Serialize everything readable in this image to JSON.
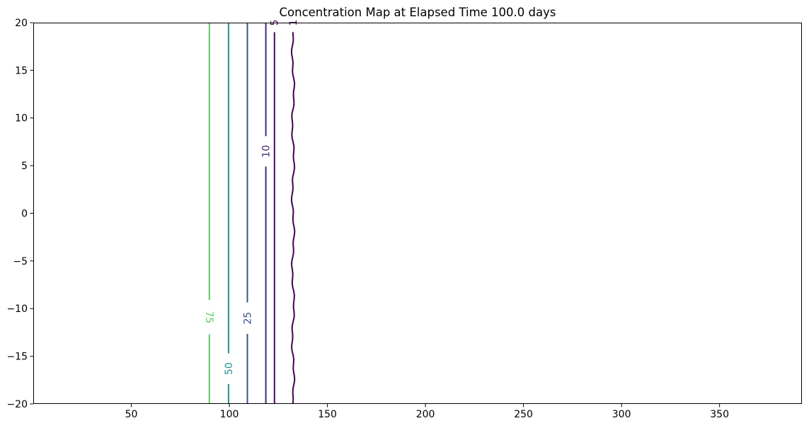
{
  "figure": {
    "background": "#ffffff"
  },
  "chart_data": {
    "type": "contour",
    "title": "Concentration Map at Elapsed Time 100.0 days",
    "xlabel": "",
    "ylabel": "",
    "xlim": [
      0,
      392
    ],
    "ylim": [
      -20,
      20
    ],
    "grid": false,
    "legend": "none",
    "colormap": "viridis",
    "x_ticks": [
      50,
      100,
      150,
      200,
      250,
      300,
      350
    ],
    "x_tick_labels": [
      "50",
      "100",
      "150",
      "200",
      "250",
      "300",
      "350"
    ],
    "y_ticks": [
      -20,
      -15,
      -10,
      -5,
      0,
      5,
      10,
      15,
      20
    ],
    "y_tick_labels": [
      "−20",
      "−15",
      "−10",
      "−5",
      "0",
      "5",
      "10",
      "15",
      "20"
    ],
    "contour_levels": [
      1,
      5,
      10,
      25,
      50,
      75
    ],
    "contours": [
      {
        "level": 75,
        "label": "75",
        "x": 89.8,
        "color": "#5ec962",
        "label_y": -10.9,
        "label_rotation": 90,
        "label_gap_half": 1.8,
        "wiggly": false
      },
      {
        "level": 50,
        "label": "50",
        "x": 99.6,
        "color": "#21918c",
        "label_y": -16.3,
        "label_rotation": -90,
        "label_gap_half": 1.6,
        "wiggly": false
      },
      {
        "level": 25,
        "label": "25",
        "x": 109.2,
        "color": "#3b528b",
        "label_y": -11.0,
        "label_rotation": -90,
        "label_gap_half": 1.65,
        "wiggly": false
      },
      {
        "level": 10,
        "label": "10",
        "x": 118.6,
        "color": "#482878",
        "label_y": 6.5,
        "label_rotation": -90,
        "label_gap_half": 1.6,
        "wiggly": false
      },
      {
        "level": 5,
        "label": "5",
        "x": 123.0,
        "color": "#46085c",
        "label_y": 20.0,
        "label_rotation": -90,
        "label_gap_half": 1.0,
        "wiggly": false
      },
      {
        "level": 1,
        "label": "1",
        "x": 132.5,
        "color": "#440154",
        "label_y": 20.0,
        "label_rotation": -90,
        "label_gap_half": 1.0,
        "wiggly": true
      }
    ],
    "axis": {
      "spine_color": "#000000",
      "tick_color": "#000000",
      "tick_label_color": "#000000"
    }
  }
}
